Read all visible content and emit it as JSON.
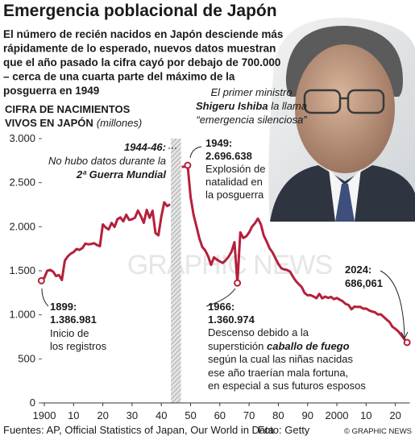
{
  "chart_data": {
    "type": "line",
    "title": "Emergencia poblacional de Japón",
    "subtitle": [
      "El número de recién nacidos en Japón desciende más",
      "rápidamente de lo esperado, nuevos datos muestran",
      "que el año pasado la cifra cayó por debajo de 700.000",
      "– cerca de una cuarta parte del máximo de la",
      "posguerra en 1949"
    ],
    "y_label": "CIFRA DE NACIMIENTOS",
    "y_label_2": "VIVOS EN JAPÓN",
    "y_unit": "(millones)",
    "quote": {
      "line1": "El primer ministro",
      "name": "Shigeru Ishiba",
      "line2_rest": " la llama",
      "line3": "“emergencia silenciosa”"
    },
    "annotations": {
      "war": {
        "label": "1944-46:",
        "line1": "No hubo datos durante la",
        "line2": "2ª Guerra Mundial"
      },
      "peak": {
        "label": "1949:",
        "value": "2.696.638",
        "lines": [
          "Explosión de",
          "natalidad en",
          "la posguerra"
        ]
      },
      "start": {
        "label": "1899:",
        "value": "1.386.981",
        "lines": [
          "Inicio de",
          "los registros"
        ]
      },
      "dip": {
        "label": "1966:",
        "value": "1.360.974",
        "line1": "Descenso debido a la",
        "line2a": "superstición ",
        "line2b": "caballo de fuego",
        "lines": [
          "según la cual las niñas nacidas",
          "ese año traerían mala fortuna,",
          "en especial a sus futuros esposos"
        ]
      },
      "last": {
        "label": "2024:",
        "value": "686,061"
      }
    },
    "watermark": "GRAPHIC NEWS",
    "source": "Fuentes: AP, Official Statistics of Japan, Our World in Data",
    "photo_credit": "Foto: Getty",
    "copyright": "© GRAPHIC NEWS",
    "color": "#b5203a",
    "grid": false,
    "xlim": [
      1893,
      2026
    ],
    "ylim": [
      0,
      3000
    ],
    "xticks": [
      1900,
      {
        "value": 1910,
        "label": "10"
      },
      {
        "value": 1920,
        "label": "20"
      },
      {
        "value": 1930,
        "label": "30"
      },
      {
        "value": 1940,
        "label": "40"
      },
      {
        "value": 1950,
        "label": "50"
      },
      {
        "value": 1960,
        "label": "60"
      },
      {
        "value": 1970,
        "label": "70"
      },
      {
        "value": 1980,
        "label": "80"
      },
      {
        "value": 1990,
        "label": "90"
      },
      2000,
      {
        "value": 2010,
        "label": "10"
      },
      {
        "value": 2020,
        "label": "20"
      }
    ],
    "yticks": [
      0,
      500,
      {
        "value": 1000,
        "label": "1.000"
      },
      {
        "value": 1500,
        "label": "1.500"
      },
      {
        "value": 2000,
        "label": "2.000"
      },
      {
        "value": 2500,
        "label": "2.500"
      },
      {
        "value": 3000,
        "label": "3.000"
      }
    ],
    "x": [
      1899,
      1900,
      1901,
      1902,
      1903,
      1904,
      1905,
      1906,
      1907,
      1908,
      1909,
      1910,
      1911,
      1912,
      1913,
      1914,
      1915,
      1916,
      1917,
      1918,
      1919,
      1920,
      1921,
      1922,
      1923,
      1924,
      1925,
      1926,
      1927,
      1928,
      1929,
      1930,
      1931,
      1932,
      1933,
      1934,
      1935,
      1936,
      1937,
      1938,
      1939,
      1940,
      1941,
      1942,
      1943,
      1944,
      1945,
      1946,
      1947,
      1948,
      1949,
      1950,
      1951,
      1952,
      1953,
      1954,
      1955,
      1956,
      1957,
      1958,
      1959,
      1960,
      1961,
      1962,
      1963,
      1964,
      1965,
      1966,
      1967,
      1968,
      1969,
      1970,
      1971,
      1972,
      1973,
      1974,
      1975,
      1976,
      1977,
      1978,
      1979,
      1980,
      1981,
      1982,
      1983,
      1984,
      1985,
      1986,
      1987,
      1988,
      1989,
      1990,
      1991,
      1992,
      1993,
      1994,
      1995,
      1996,
      1997,
      1998,
      1999,
      2000,
      2001,
      2002,
      2003,
      2004,
      2005,
      2006,
      2007,
      2008,
      2009,
      2010,
      2011,
      2012,
      2013,
      2014,
      2015,
      2016,
      2017,
      2018,
      2019,
      2020,
      2021,
      2022,
      2023,
      2024
    ],
    "values": [
      1386.981,
      1420,
      1501,
      1510,
      1490,
      1440,
      1452,
      1395,
      1615,
      1663,
      1694,
      1712,
      1747,
      1737,
      1757,
      1808,
      1800,
      1804,
      1813,
      1792,
      1779,
      2026,
      1991,
      1969,
      2043,
      1998,
      2086,
      2105,
      2061,
      2136,
      2077,
      2085,
      2103,
      2183,
      2121,
      2044,
      2191,
      2102,
      2181,
      1928,
      1902,
      2116,
      2277,
      2234,
      2254,
      null,
      null,
      null,
      2679,
      2682,
      2696.638,
      2338,
      2138,
      2005,
      1868,
      1770,
      1731,
      1665,
      1567,
      1653,
      1626,
      1606,
      1589,
      1619,
      1660,
      1717,
      1824,
      1360.974,
      1936,
      1872,
      1890,
      1934,
      2001,
      2039,
      2092,
      2030,
      1901,
      1833,
      1755,
      1709,
      1643,
      1577,
      1529,
      1515,
      1509,
      1490,
      1432,
      1383,
      1347,
      1314,
      1247,
      1222,
      1223,
      1209,
      1188,
      1238,
      1187,
      1207,
      1192,
      1203,
      1178,
      1191,
      1171,
      1154,
      1124,
      1111,
      1063,
      1093,
      1090,
      1091,
      1070,
      1071,
      1051,
      1037,
      1030,
      1004,
      1006,
      977,
      946,
      918,
      865,
      841,
      812,
      771,
      727,
      686.061
    ]
  }
}
